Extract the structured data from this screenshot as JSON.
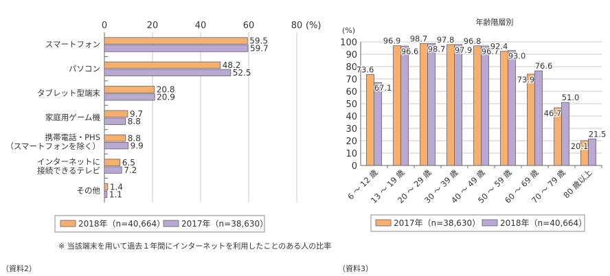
{
  "colors": {
    "orange": "#f6b06e",
    "purple": "#b8a9d3",
    "border": "#6b5b6b",
    "grid": "#c8c8c8"
  },
  "chart_data": [
    {
      "type": "bar",
      "orientation": "horizontal",
      "categories": [
        "スマートフォン",
        "パソコン",
        "タブレット型端末",
        "家庭用ゲーム機",
        "携帯電話・PHS\n（スマートフォンを除く）",
        "インターネットに\n接続できるテレビ",
        "その他"
      ],
      "series": [
        {
          "name": "2018年（n=40,664）",
          "color": "#f6b06e",
          "values": [
            59.5,
            48.2,
            20.8,
            9.7,
            8.8,
            6.5,
            1.4
          ]
        },
        {
          "name": "2017年（n=38,630）",
          "color": "#b8a9d3",
          "values": [
            59.7,
            52.5,
            20.9,
            8.8,
            9.9,
            7.2,
            1.1
          ]
        }
      ],
      "xlim": [
        0,
        80
      ],
      "xticks": [
        "0",
        "20",
        "40",
        "60",
        "80"
      ],
      "unit": "(%)",
      "grid": true,
      "legend": "bottom"
    },
    {
      "type": "bar",
      "title": "年齢階層別",
      "categories": [
        "6 ～ 12 歳",
        "13 ～ 19 歳",
        "20 ～ 29 歳",
        "30 ～ 39 歳",
        "40 ～ 49 歳",
        "50 ～ 59 歳",
        "60 ～ 69 歳",
        "70 ～ 79 歳",
        "80 歳以上"
      ],
      "series": [
        {
          "name": "2017年（n=38,630）",
          "color": "#f6b06e",
          "values": [
            73.6,
            96.9,
            98.7,
            97.8,
            96.8,
            92.4,
            73.9,
            46.7,
            20.1
          ]
        },
        {
          "name": "2018年（n=40,664）",
          "color": "#b8a9d3",
          "values": [
            67.1,
            96.6,
            98.7,
            97.9,
            96.7,
            93.0,
            76.6,
            51.0,
            21.5
          ]
        }
      ],
      "ylim": [
        0,
        100
      ],
      "yticks": [
        "0",
        "10",
        "20",
        "30",
        "40",
        "50",
        "60",
        "70",
        "80",
        "90",
        "100"
      ],
      "unit": "(%)",
      "grid": true,
      "legend": "bottom"
    }
  ],
  "footnote": "※ 当該端末を用いて過去１年間にインターネットを利用したことのある人の比率",
  "source_left": "（資料2）",
  "source_right": "（資料3）"
}
